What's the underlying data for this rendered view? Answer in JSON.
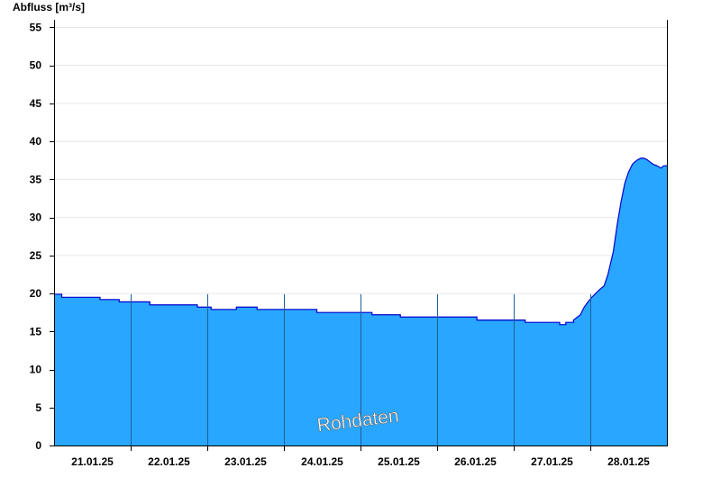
{
  "chart_data": {
    "type": "area",
    "ylabel": "Abfluss [m³/s]",
    "ylim": [
      0,
      56
    ],
    "yticks": [
      0,
      5,
      10,
      15,
      20,
      25,
      30,
      35,
      40,
      45,
      50,
      55
    ],
    "xlim": [
      0,
      8
    ],
    "day_boundaries": [
      1,
      2,
      3,
      4,
      5,
      6,
      7
    ],
    "categories": [
      "21.01.25",
      "22.01.25",
      "23.01.25",
      "24.01.25",
      "25.01.25",
      "26.01.25",
      "27.01.25",
      "28.01.25"
    ],
    "watermark": "Rohdaten",
    "grid": "horizontal",
    "colors": {
      "fill": "#29a6ff",
      "line": "#0000cc",
      "grid": "#e6e6e6",
      "axis": "#000000",
      "divider": "#1f5f99"
    },
    "series": [
      {
        "x": [
          0.0,
          0.1,
          0.1,
          0.6,
          0.6,
          0.85,
          0.85,
          1.25,
          1.25,
          1.7,
          1.7,
          1.87,
          1.87,
          2.05,
          2.05,
          2.38,
          2.38,
          2.65,
          2.65,
          2.97,
          2.97,
          3.43,
          3.43,
          4.15,
          4.15,
          4.52,
          4.52,
          5.17,
          5.17,
          5.52,
          5.52,
          6.15,
          6.15,
          6.6,
          6.6,
          6.68,
          6.68,
          6.78,
          6.78,
          6.87,
          6.92,
          6.97,
          7.02,
          7.07,
          7.12,
          7.18,
          7.23,
          7.3,
          7.35,
          7.4,
          7.45,
          7.5,
          7.55,
          7.58,
          7.62,
          7.66,
          7.7,
          7.74,
          7.78,
          7.82,
          7.87,
          7.92,
          7.96,
          8.0
        ],
        "values": [
          19.9,
          19.9,
          19.5,
          19.5,
          19.2,
          19.2,
          18.9,
          18.9,
          18.5,
          18.5,
          18.5,
          18.5,
          18.2,
          18.2,
          17.9,
          17.9,
          18.2,
          18.2,
          17.9,
          17.9,
          17.9,
          17.9,
          17.5,
          17.5,
          17.2,
          17.2,
          16.9,
          16.9,
          16.9,
          16.9,
          16.5,
          16.5,
          16.2,
          16.2,
          15.9,
          15.9,
          16.2,
          16.2,
          16.5,
          17.2,
          18.2,
          18.9,
          19.5,
          20.0,
          20.5,
          21.0,
          22.5,
          25.5,
          29.0,
          32.0,
          34.5,
          36.0,
          37.0,
          37.3,
          37.6,
          37.8,
          37.8,
          37.6,
          37.3,
          37.0,
          36.8,
          36.5,
          36.8,
          36.8
        ]
      }
    ]
  }
}
